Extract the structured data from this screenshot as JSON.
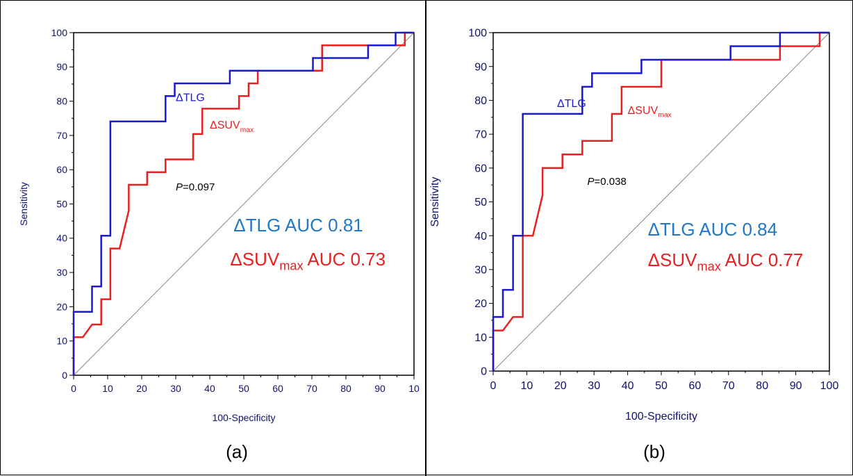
{
  "chart_data": [
    {
      "type": "line",
      "panel_label": "(a)",
      "xlabel": "100-Specificity",
      "ylabel": "Sensitivity",
      "xlim": [
        0,
        100
      ],
      "ylim": [
        0,
        100
      ],
      "x_ticks": [
        "0",
        "10",
        "20",
        "30",
        "40",
        "50",
        "60",
        "70",
        "80",
        "90",
        "10"
      ],
      "y_ticks": [
        "0",
        "10",
        "20",
        "30",
        "40",
        "50",
        "60",
        "70",
        "80",
        "90",
        "100"
      ],
      "grid": false,
      "diagonal_reference": true,
      "p_value": {
        "prefix": "P",
        "text": "=0.097"
      },
      "series": [
        {
          "marker": "ΔTLG",
          "color": "#1a1acc",
          "points": [
            [
              0,
              0
            ],
            [
              0,
              18.5
            ],
            [
              5.4,
              18.5
            ],
            [
              5.4,
              25.9
            ],
            [
              8.1,
              25.9
            ],
            [
              8.1,
              40.7
            ],
            [
              10.8,
              40.7
            ],
            [
              10.8,
              74.1
            ],
            [
              27,
              74.1
            ],
            [
              27,
              81.5
            ],
            [
              29.7,
              81.5
            ],
            [
              29.7,
              85.2
            ],
            [
              45.9,
              85.2
            ],
            [
              45.9,
              88.9
            ],
            [
              70.3,
              88.9
            ],
            [
              70.3,
              92.6
            ],
            [
              86.5,
              92.6
            ],
            [
              86.5,
              96.3
            ],
            [
              94.6,
              96.3
            ],
            [
              94.6,
              100
            ],
            [
              100,
              100
            ]
          ]
        },
        {
          "marker": "ΔSUV",
          "marker_sub": "max",
          "color": "#e82020",
          "points": [
            [
              0,
              0
            ],
            [
              0,
              11.1
            ],
            [
              2.7,
              11.1
            ],
            [
              5.4,
              14.8
            ],
            [
              8.1,
              14.8
            ],
            [
              8.1,
              22.2
            ],
            [
              10.8,
              22.2
            ],
            [
              10.8,
              37
            ],
            [
              13.5,
              37
            ],
            [
              16.2,
              48.1
            ],
            [
              16.2,
              55.6
            ],
            [
              21.6,
              55.6
            ],
            [
              21.6,
              59.3
            ],
            [
              27,
              59.3
            ],
            [
              27,
              63
            ],
            [
              35.1,
              63
            ],
            [
              35.1,
              70.4
            ],
            [
              37.8,
              70.4
            ],
            [
              37.8,
              77.8
            ],
            [
              48.6,
              77.8
            ],
            [
              48.6,
              81.5
            ],
            [
              51.4,
              81.5
            ],
            [
              51.4,
              85.2
            ],
            [
              54.1,
              85.2
            ],
            [
              54.1,
              88.9
            ],
            [
              73,
              88.9
            ],
            [
              73,
              96.3
            ],
            [
              97.3,
              96.3
            ],
            [
              97.3,
              100
            ],
            [
              100,
              100
            ]
          ]
        }
      ],
      "auc_lines": [
        {
          "prefix": "ΔTLG AUC 0.81",
          "sub": "",
          "suffix": "",
          "color": "#1f78c8"
        },
        {
          "prefix": "ΔSUV",
          "sub": "max",
          "suffix": " AUC 0.73",
          "color": "#e82020"
        }
      ]
    },
    {
      "type": "line",
      "panel_label": "(b)",
      "xlabel": "100-Specificity",
      "ylabel": "Sensitivity",
      "xlim": [
        0,
        100
      ],
      "ylim": [
        0,
        100
      ],
      "x_ticks": [
        "0",
        "10",
        "20",
        "30",
        "40",
        "50",
        "60",
        "70",
        "80",
        "90",
        "100"
      ],
      "y_ticks": [
        "0",
        "10",
        "20",
        "30",
        "40",
        "50",
        "60",
        "70",
        "80",
        "90",
        "100"
      ],
      "grid": false,
      "diagonal_reference": true,
      "p_value": {
        "prefix": "P",
        "text": "=0.038"
      },
      "series": [
        {
          "marker": "ΔTLG",
          "color": "#1a1acc",
          "points": [
            [
              0,
              0
            ],
            [
              0,
              16
            ],
            [
              2.9,
              16
            ],
            [
              2.9,
              24
            ],
            [
              5.9,
              24
            ],
            [
              5.9,
              40
            ],
            [
              8.8,
              40
            ],
            [
              8.8,
              76
            ],
            [
              26.5,
              76
            ],
            [
              26.5,
              84
            ],
            [
              29.4,
              84
            ],
            [
              29.4,
              88
            ],
            [
              44.1,
              88
            ],
            [
              44.1,
              92
            ],
            [
              70.6,
              92
            ],
            [
              70.6,
              96
            ],
            [
              85.3,
              96
            ],
            [
              85.3,
              100
            ],
            [
              100,
              100
            ]
          ]
        },
        {
          "marker": "ΔSUV",
          "marker_sub": "max",
          "color": "#e82020",
          "points": [
            [
              0,
              0
            ],
            [
              0,
              12
            ],
            [
              2.9,
              12
            ],
            [
              5.9,
              16
            ],
            [
              8.8,
              16
            ],
            [
              8.8,
              40
            ],
            [
              11.8,
              40
            ],
            [
              14.7,
              52
            ],
            [
              14.7,
              60
            ],
            [
              20.6,
              60
            ],
            [
              20.6,
              64
            ],
            [
              26.5,
              64
            ],
            [
              26.5,
              68
            ],
            [
              35.3,
              68
            ],
            [
              35.3,
              76
            ],
            [
              38.2,
              76
            ],
            [
              38.2,
              84
            ],
            [
              50,
              84
            ],
            [
              50,
              92
            ],
            [
              85.3,
              92
            ],
            [
              85.3,
              96
            ],
            [
              97.1,
              96
            ],
            [
              97.1,
              100
            ],
            [
              100,
              100
            ]
          ]
        }
      ],
      "auc_lines": [
        {
          "prefix": "ΔTLG AUC 0.84",
          "sub": "",
          "suffix": "",
          "color": "#1f78c8"
        },
        {
          "prefix": "ΔSUV",
          "sub": "max",
          "suffix": " AUC 0.77",
          "color": "#e82020"
        }
      ]
    }
  ]
}
